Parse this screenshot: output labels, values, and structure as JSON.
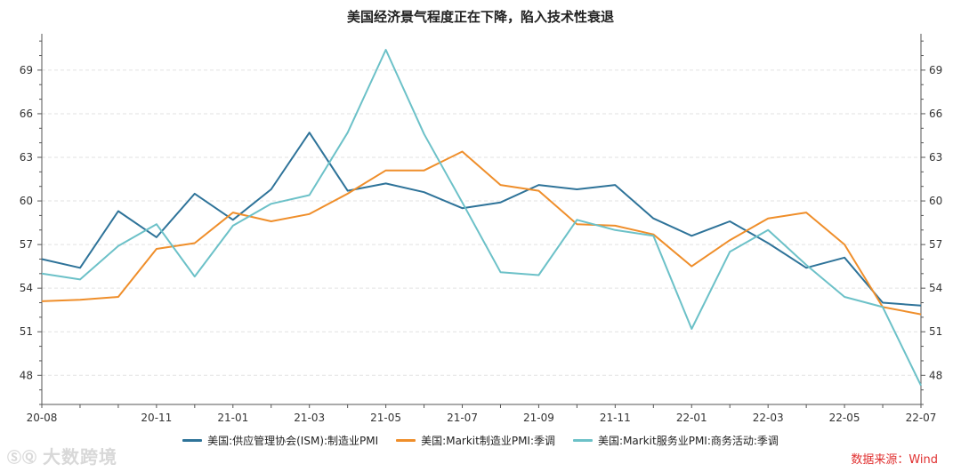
{
  "watermark": {
    "text": "大数跨境",
    "logo": "sq-logo-icon"
  },
  "source": "数据来源：Wind",
  "colors": {
    "series1": "#2e7399",
    "series2": "#ef8e2a",
    "series3": "#6cc1c8"
  },
  "chart_data": {
    "type": "line",
    "title": "美国经济景气程度正在下降，陷入技术性衰退",
    "x": [
      "20-08",
      "20-09",
      "20-10",
      "20-11",
      "20-12",
      "21-01",
      "21-02",
      "21-03",
      "21-04",
      "21-05",
      "21-06",
      "21-07",
      "21-08",
      "21-09",
      "21-10",
      "21-11",
      "21-12",
      "22-01",
      "22-02",
      "22-03",
      "22-04",
      "22-05",
      "22-06",
      "22-07"
    ],
    "xtick_labels": [
      "20-08",
      "20-11",
      "21-01",
      "21-03",
      "21-05",
      "21-07",
      "21-09",
      "21-11",
      "22-01",
      "22-03",
      "22-05",
      "22-07"
    ],
    "ylim": [
      46,
      71.5
    ],
    "yticks": [
      48,
      51,
      54,
      57,
      60,
      63,
      66,
      69
    ],
    "grid": true,
    "series": [
      {
        "name": "美国:供应管理协会(ISM):制造业PMI",
        "color": "#2e7399",
        "values": [
          56.0,
          55.4,
          59.3,
          57.5,
          60.5,
          58.7,
          60.8,
          64.7,
          60.7,
          61.2,
          60.6,
          59.5,
          59.9,
          61.1,
          60.8,
          61.1,
          58.8,
          57.6,
          58.6,
          57.1,
          55.4,
          56.1,
          53.0,
          52.8
        ]
      },
      {
        "name": "美国:Markit制造业PMI:季调",
        "color": "#ef8e2a",
        "values": [
          53.1,
          53.2,
          53.4,
          56.7,
          57.1,
          59.2,
          58.6,
          59.1,
          60.5,
          62.1,
          62.1,
          63.4,
          61.1,
          60.7,
          58.4,
          58.3,
          57.7,
          55.5,
          57.3,
          58.8,
          59.2,
          57.0,
          52.7,
          52.2
        ]
      },
      {
        "name": "美国:Markit服务业PMI:商务活动:季调",
        "color": "#6cc1c8",
        "values": [
          55.0,
          54.6,
          56.9,
          58.4,
          54.8,
          58.3,
          59.8,
          60.4,
          64.7,
          70.4,
          64.6,
          59.9,
          55.1,
          54.9,
          58.7,
          58.0,
          57.6,
          51.2,
          56.5,
          58.0,
          55.6,
          53.4,
          52.7,
          47.3
        ]
      }
    ]
  }
}
